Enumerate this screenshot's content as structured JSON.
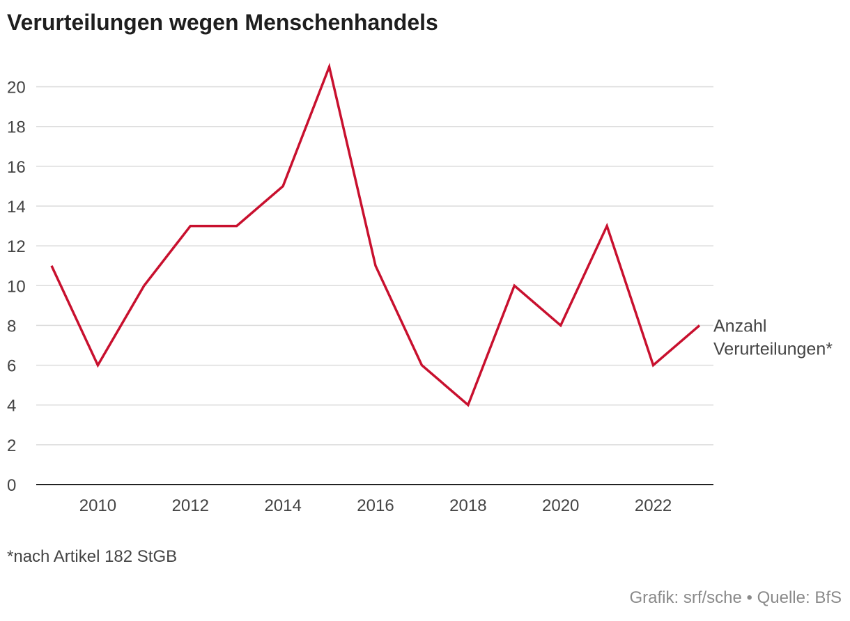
{
  "chart_data": {
    "type": "line",
    "title": "Verurteilungen wegen Menschenhandels",
    "x": [
      2009,
      2010,
      2011,
      2012,
      2013,
      2014,
      2015,
      2016,
      2017,
      2018,
      2019,
      2020,
      2021,
      2022,
      2023
    ],
    "series": [
      {
        "name": "Anzahl Verurteilungen*",
        "label_lines": [
          "Anzahl",
          "Verurteilungen*"
        ],
        "color": "#c8102e",
        "values": [
          11,
          6,
          10,
          13,
          13,
          15,
          21,
          11,
          6,
          4,
          10,
          8,
          13,
          6,
          8
        ]
      }
    ],
    "xticks": [
      "2010",
      "2012",
      "2014",
      "2016",
      "2018",
      "2020",
      "2022"
    ],
    "yticks": [
      "0",
      "2",
      "4",
      "6",
      "8",
      "10",
      "12",
      "14",
      "16",
      "18",
      "20"
    ],
    "ylim": [
      0,
      21
    ],
    "xlim": [
      2009,
      2023
    ],
    "xlabel": "",
    "ylabel": "",
    "grid": true
  },
  "footnote": "*nach Artikel 182 StGB",
  "credits": "Grafik: srf/sche • Quelle: BfS"
}
